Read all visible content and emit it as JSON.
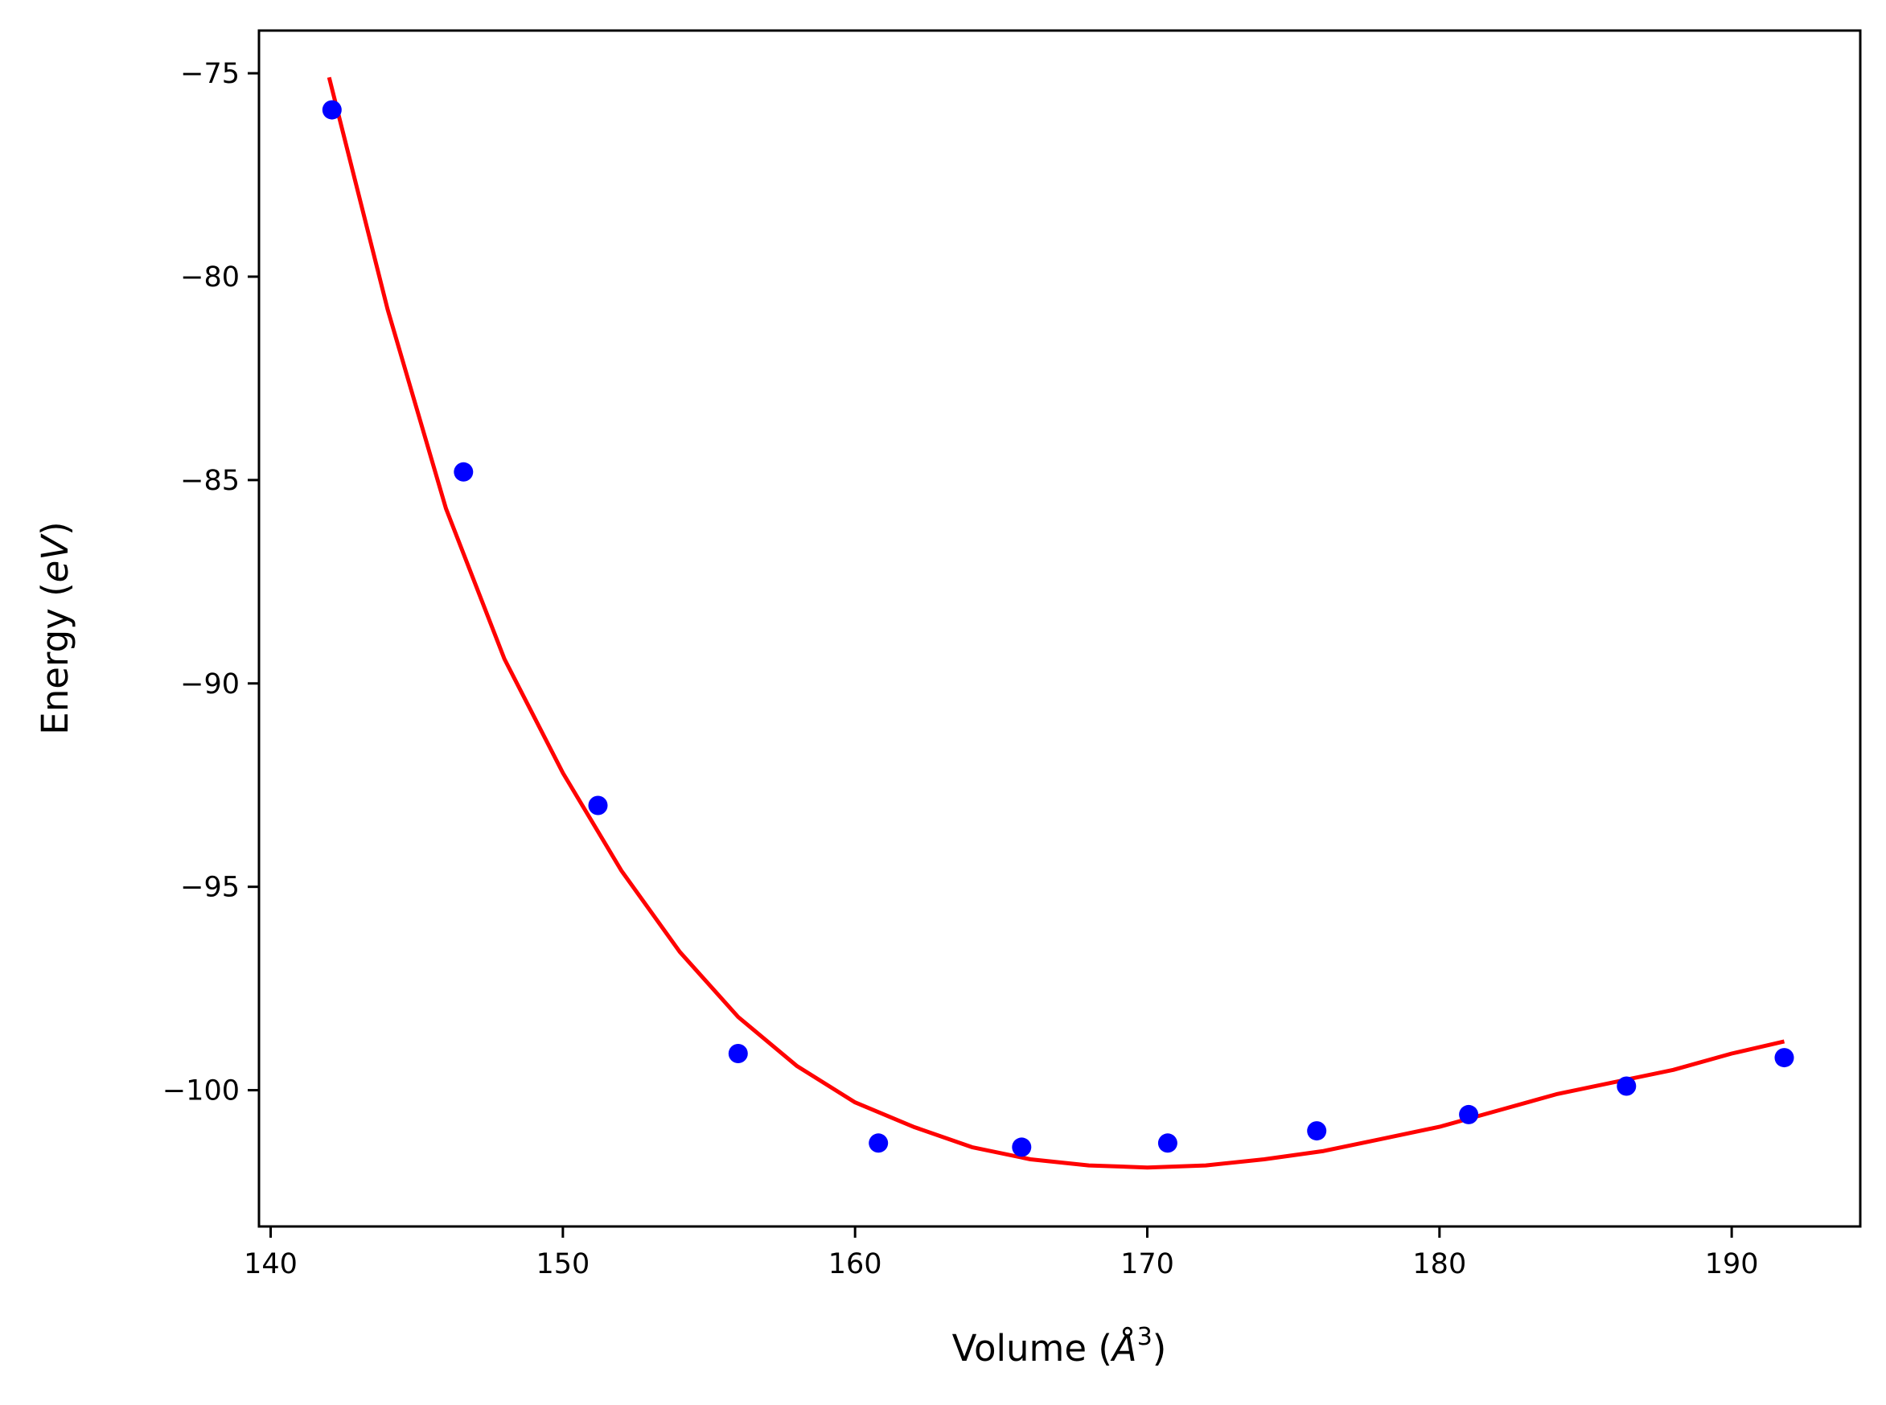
{
  "chart_data": {
    "type": "scatter",
    "title": "",
    "xlabel": {
      "prefix": "Volume (",
      "symbol": "Å",
      "superscript": "3",
      "suffix": ")"
    },
    "ylabel": {
      "prefix": "Energy (",
      "unit": "eV",
      "suffix": ")"
    },
    "xlim": [
      139.6,
      194.4
    ],
    "ylim": [
      -103.35,
      -73.95
    ],
    "xticks": [
      140,
      150,
      160,
      170,
      180,
      190
    ],
    "yticks": [
      -75,
      -80,
      -85,
      -90,
      -95,
      -100
    ],
    "xtick_labels": [
      "140",
      "150",
      "160",
      "170",
      "180",
      "190"
    ],
    "ytick_labels": [
      "−75",
      "−80",
      "−85",
      "−90",
      "−95",
      "−100"
    ],
    "grid": false,
    "legend": "none",
    "series": [
      {
        "kind": "scatter",
        "color": "#0000ff",
        "x": [
          142.1,
          146.6,
          151.2,
          156.0,
          160.8,
          165.7,
          170.7,
          175.8,
          181.0,
          186.4,
          191.8
        ],
        "y": [
          -75.9,
          -84.8,
          -93.0,
          -99.1,
          -101.3,
          -101.4,
          -101.3,
          -101.0,
          -100.6,
          -99.9,
          -99.2
        ]
      },
      {
        "kind": "line",
        "color": "#ff0000",
        "x": [
          142.0,
          144.0,
          146.0,
          148.0,
          150.0,
          152.0,
          154.0,
          156.0,
          158.0,
          160.0,
          162.0,
          164.0,
          166.0,
          168.0,
          170.0,
          172.0,
          174.0,
          176.0,
          178.0,
          180.0,
          182.0,
          184.0,
          186.0,
          188.0,
          190.0,
          191.8
        ],
        "y": [
          -75.1,
          -80.8,
          -85.7,
          -89.4,
          -92.2,
          -94.6,
          -96.6,
          -98.2,
          -99.4,
          -100.3,
          -100.9,
          -101.4,
          -101.7,
          -101.85,
          -101.9,
          -101.85,
          -101.7,
          -101.5,
          -101.2,
          -100.9,
          -100.5,
          -100.1,
          -99.8,
          -99.5,
          -99.1,
          -98.8
        ]
      }
    ]
  }
}
